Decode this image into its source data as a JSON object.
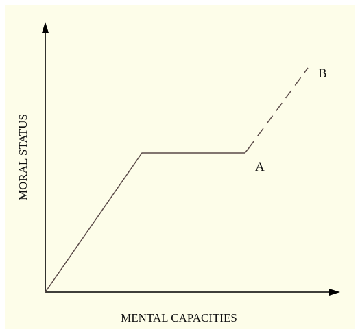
{
  "diagram": {
    "y_axis_label": "MORAL STATUS",
    "x_axis_label": "MENTAL CAPACITIES",
    "point_a_label": "A",
    "point_b_label": "B",
    "colors": {
      "background": "#fdfde9",
      "axis": "#000000",
      "curve": "#5a4a48",
      "text": "#111111"
    }
  }
}
